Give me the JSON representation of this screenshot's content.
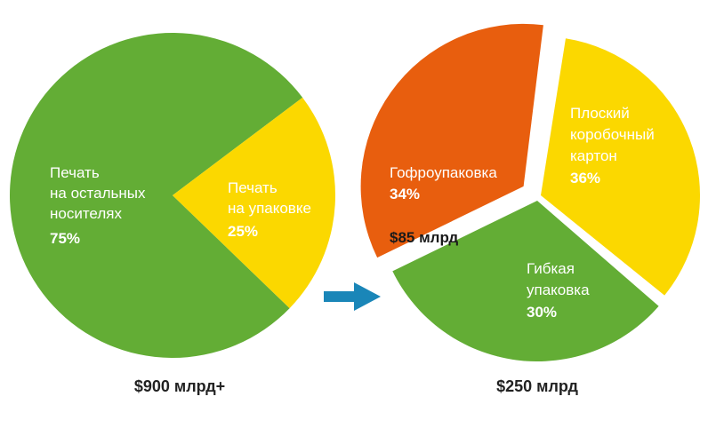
{
  "chart_data": [
    {
      "type": "pie",
      "total_label": "$900 млрд+",
      "slices": [
        {
          "key": "other",
          "label_lines": [
            "Печать",
            "на остальных",
            "носителях"
          ],
          "pct_label": "75%",
          "value": 75,
          "color": "#63ad35"
        },
        {
          "key": "packaging",
          "label_lines": [
            "Печать",
            "на упаковке"
          ],
          "pct_label": "25%",
          "value": 25,
          "color": "#fbd800"
        }
      ]
    },
    {
      "type": "pie",
      "total_label": "$250 млрд",
      "slices": [
        {
          "key": "corrugated",
          "label_lines": [
            "Гофроупаковка"
          ],
          "pct_label": "34%",
          "value": 34,
          "sub_label": "$85 млрд",
          "color": "#e85e0e",
          "exploded": true
        },
        {
          "key": "carton",
          "label_lines": [
            "Плоский",
            "коробочный",
            "картон"
          ],
          "pct_label": "36%",
          "value": 36,
          "color": "#fbd800"
        },
        {
          "key": "flexible",
          "label_lines": [
            "Гибкая",
            "упаковка"
          ],
          "pct_label": "30%",
          "value": 30,
          "color": "#63ad35"
        }
      ]
    }
  ],
  "arrow": {
    "icon": "arrow-right-icon",
    "color": "#1a86b8"
  }
}
